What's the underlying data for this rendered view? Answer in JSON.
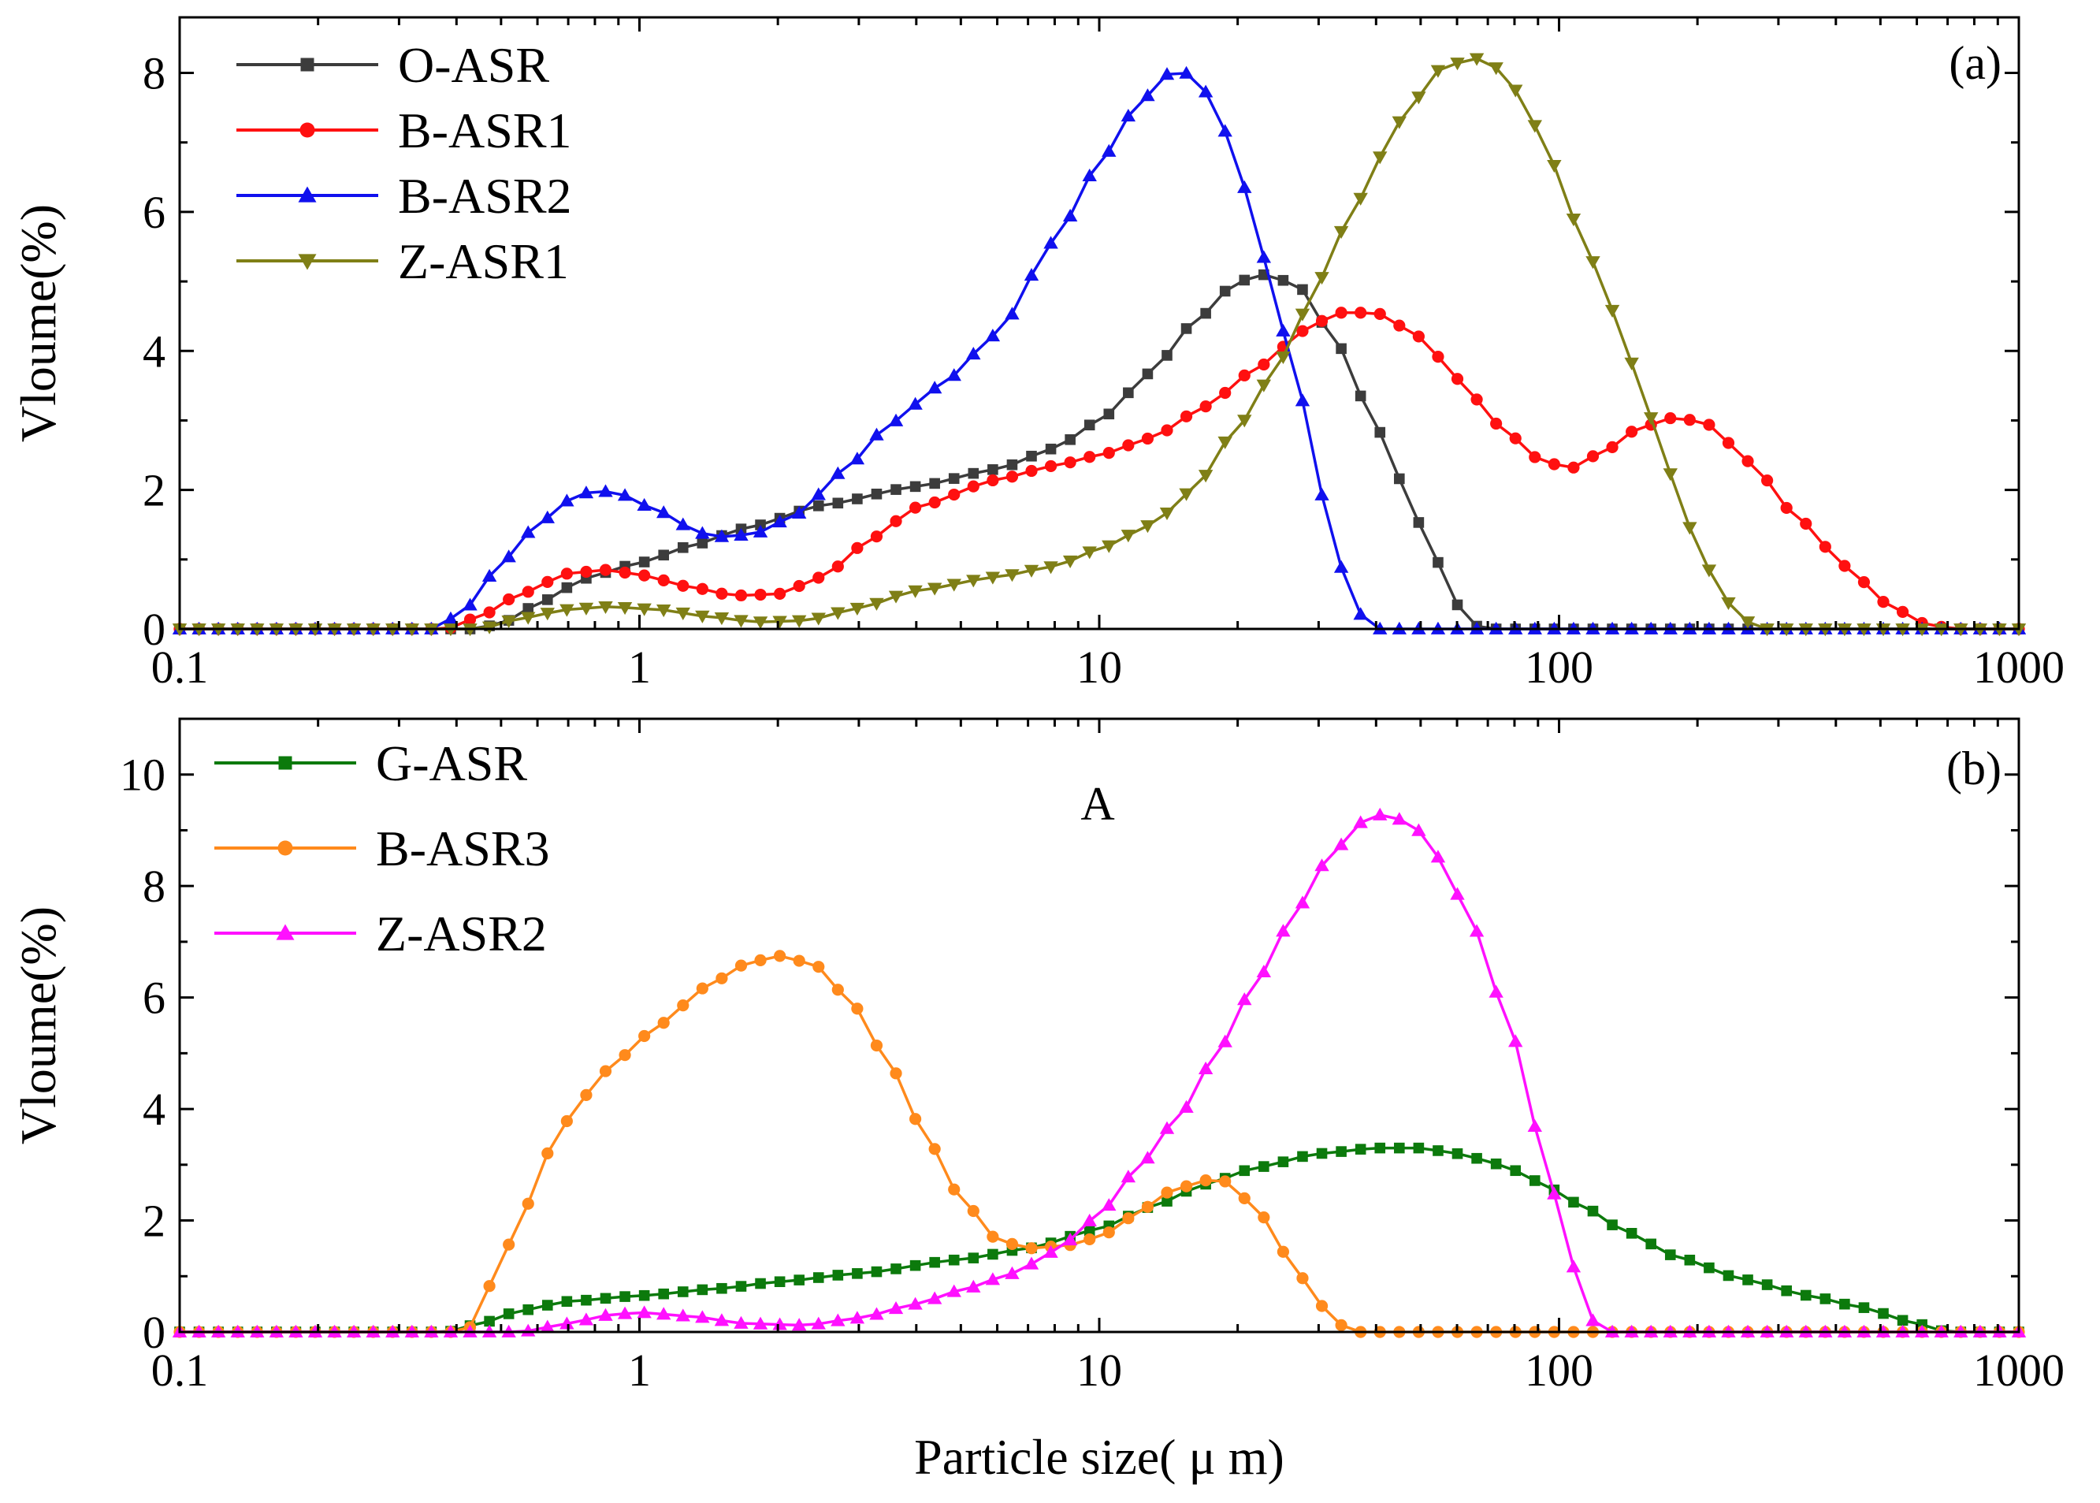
{
  "chart_data": [
    {
      "type": "line",
      "panel_label": "(a)",
      "xscale": "log",
      "xlim": [
        0.1,
        1000
      ],
      "ylim": [
        0,
        8.8
      ],
      "xticks": [
        0.1,
        1,
        10,
        100,
        1000
      ],
      "xtick_labels": [
        "0.1",
        "1",
        "10",
        "100",
        "1000"
      ],
      "yticks": [
        0,
        2,
        4,
        6,
        8
      ],
      "ytick_labels": [
        "0",
        "2",
        "4",
        "6",
        "8"
      ],
      "ylabel": "Vloume(%)",
      "xlabel": "",
      "legend_position": "top-left",
      "series": [
        {
          "name": "O-ASR",
          "color": "#3c3c3c",
          "marker": "square",
          "anchors": [
            [
              0.1,
              0
            ],
            [
              0.44,
              0
            ],
            [
              0.5,
              0.08
            ],
            [
              0.6,
              0.35
            ],
            [
              0.7,
              0.6
            ],
            [
              0.8,
              0.78
            ],
            [
              1,
              0.95
            ],
            [
              1.3,
              1.2
            ],
            [
              1.7,
              1.45
            ],
            [
              2.5,
              1.78
            ],
            [
              4,
              2.05
            ],
            [
              6,
              2.3
            ],
            [
              8,
              2.6
            ],
            [
              10,
              3.0
            ],
            [
              13,
              3.7
            ],
            [
              16,
              4.4
            ],
            [
              20,
              5.0
            ],
            [
              23,
              5.1
            ],
            [
              27,
              4.95
            ],
            [
              33,
              4.1
            ],
            [
              40,
              2.9
            ],
            [
              50,
              1.5
            ],
            [
              60,
              0.35
            ],
            [
              65,
              0.05
            ],
            [
              70,
              0
            ],
            [
              1000,
              0
            ]
          ]
        },
        {
          "name": "B-ASR1",
          "color": "#ff1010",
          "marker": "circle",
          "anchors": [
            [
              0.1,
              0
            ],
            [
              0.38,
              0
            ],
            [
              0.45,
              0.18
            ],
            [
              0.55,
              0.5
            ],
            [
              0.7,
              0.8
            ],
            [
              0.85,
              0.85
            ],
            [
              1,
              0.78
            ],
            [
              1.3,
              0.6
            ],
            [
              1.6,
              0.48
            ],
            [
              2,
              0.5
            ],
            [
              2.5,
              0.75
            ],
            [
              3.2,
              1.3
            ],
            [
              4,
              1.75
            ],
            [
              6,
              2.15
            ],
            [
              8,
              2.35
            ],
            [
              10,
              2.5
            ],
            [
              13,
              2.75
            ],
            [
              17,
              3.2
            ],
            [
              22,
              3.75
            ],
            [
              28,
              4.3
            ],
            [
              33,
              4.55
            ],
            [
              40,
              4.55
            ],
            [
              50,
              4.2
            ],
            [
              60,
              3.6
            ],
            [
              75,
              2.9
            ],
            [
              90,
              2.45
            ],
            [
              105,
              2.3
            ],
            [
              125,
              2.55
            ],
            [
              150,
              2.9
            ],
            [
              180,
              3.05
            ],
            [
              210,
              2.95
            ],
            [
              260,
              2.4
            ],
            [
              330,
              1.6
            ],
            [
              420,
              0.9
            ],
            [
              520,
              0.35
            ],
            [
              620,
              0.08
            ],
            [
              720,
              0
            ],
            [
              1000,
              0
            ]
          ]
        },
        {
          "name": "B-ASR2",
          "color": "#1010ee",
          "marker": "triangle-up",
          "anchors": [
            [
              0.1,
              0
            ],
            [
              0.36,
              0
            ],
            [
              0.42,
              0.3
            ],
            [
              0.5,
              0.95
            ],
            [
              0.6,
              1.5
            ],
            [
              0.7,
              1.85
            ],
            [
              0.8,
              2.0
            ],
            [
              0.9,
              1.95
            ],
            [
              1.1,
              1.7
            ],
            [
              1.35,
              1.38
            ],
            [
              1.55,
              1.32
            ],
            [
              1.8,
              1.38
            ],
            [
              2.2,
              1.65
            ],
            [
              2.8,
              2.3
            ],
            [
              3.5,
              2.95
            ],
            [
              4.5,
              3.5
            ],
            [
              6,
              4.25
            ],
            [
              8,
              5.6
            ],
            [
              10,
              6.7
            ],
            [
              12,
              7.5
            ],
            [
              14,
              7.98
            ],
            [
              16,
              8.0
            ],
            [
              18,
              7.5
            ],
            [
              20,
              6.6
            ],
            [
              23,
              5.3
            ],
            [
              27,
              3.5
            ],
            [
              31,
              1.8
            ],
            [
              35,
              0.5
            ],
            [
              38,
              0.1
            ],
            [
              40,
              0
            ],
            [
              1000,
              0
            ]
          ]
        },
        {
          "name": "Z-ASR1",
          "color": "#7f7f16",
          "marker": "triangle-down",
          "anchors": [
            [
              0.1,
              0
            ],
            [
              0.45,
              0
            ],
            [
              0.55,
              0.15
            ],
            [
              0.7,
              0.28
            ],
            [
              0.85,
              0.32
            ],
            [
              1.1,
              0.28
            ],
            [
              1.4,
              0.18
            ],
            [
              1.8,
              0.1
            ],
            [
              2.3,
              0.12
            ],
            [
              3,
              0.3
            ],
            [
              4,
              0.55
            ],
            [
              6,
              0.75
            ],
            [
              8,
              0.9
            ],
            [
              10,
              1.15
            ],
            [
              13,
              1.5
            ],
            [
              16,
              2.0
            ],
            [
              20,
              2.9
            ],
            [
              25,
              3.9
            ],
            [
              30,
              5.0
            ],
            [
              36,
              6.1
            ],
            [
              45,
              7.3
            ],
            [
              55,
              8.05
            ],
            [
              65,
              8.22
            ],
            [
              75,
              8.05
            ],
            [
              90,
              7.2
            ],
            [
              110,
              5.8
            ],
            [
              130,
              4.6
            ],
            [
              160,
              3.0
            ],
            [
              190,
              1.5
            ],
            [
              230,
              0.4
            ],
            [
              270,
              0
            ],
            [
              1000,
              0
            ]
          ]
        }
      ]
    },
    {
      "type": "line",
      "panel_label": "(b)",
      "annotation": "A",
      "xscale": "log",
      "xlim": [
        0.1,
        1000
      ],
      "ylim": [
        0,
        11
      ],
      "xticks": [
        0.1,
        1,
        10,
        100,
        1000
      ],
      "xtick_labels": [
        "0.1",
        "1",
        "10",
        "100",
        "1000"
      ],
      "yticks": [
        0,
        2,
        4,
        6,
        8,
        10
      ],
      "ytick_labels": [
        "0",
        "2",
        "4",
        "6",
        "8",
        "10"
      ],
      "ylabel": "Vloume(%)",
      "xlabel": "Particle size( μ m)",
      "legend_position": "top-left",
      "series": [
        {
          "name": "G-ASR",
          "color": "#0c7a0c",
          "marker": "square",
          "anchors": [
            [
              0.1,
              0
            ],
            [
              0.38,
              0
            ],
            [
              0.45,
              0.15
            ],
            [
              0.55,
              0.38
            ],
            [
              0.7,
              0.55
            ],
            [
              1,
              0.65
            ],
            [
              1.5,
              0.78
            ],
            [
              2,
              0.9
            ],
            [
              3,
              1.05
            ],
            [
              5,
              1.3
            ],
            [
              7,
              1.5
            ],
            [
              10,
              1.85
            ],
            [
              13,
              2.25
            ],
            [
              17,
              2.65
            ],
            [
              22,
              2.95
            ],
            [
              30,
              3.2
            ],
            [
              40,
              3.3
            ],
            [
              50,
              3.3
            ],
            [
              60,
              3.2
            ],
            [
              75,
              3.0
            ],
            [
              90,
              2.7
            ],
            [
              110,
              2.3
            ],
            [
              140,
              1.8
            ],
            [
              180,
              1.35
            ],
            [
              250,
              0.95
            ],
            [
              350,
              0.65
            ],
            [
              450,
              0.45
            ],
            [
              600,
              0.15
            ],
            [
              700,
              0
            ],
            [
              1000,
              0
            ]
          ]
        },
        {
          "name": "B-ASR3",
          "color": "#ff8a1c",
          "marker": "circle",
          "anchors": [
            [
              0.1,
              0
            ],
            [
              0.42,
              0
            ],
            [
              0.48,
              0.9
            ],
            [
              0.55,
              2.0
            ],
            [
              0.63,
              3.2
            ],
            [
              0.75,
              4.2
            ],
            [
              0.9,
              4.9
            ],
            [
              1.1,
              5.5
            ],
            [
              1.4,
              6.2
            ],
            [
              1.7,
              6.6
            ],
            [
              2,
              6.75
            ],
            [
              2.4,
              6.6
            ],
            [
              2.9,
              5.9
            ],
            [
              3.5,
              4.8
            ],
            [
              4.2,
              3.5
            ],
            [
              5,
              2.4
            ],
            [
              6,
              1.65
            ],
            [
              7,
              1.5
            ],
            [
              8.5,
              1.55
            ],
            [
              10,
              1.7
            ],
            [
              12,
              2.1
            ],
            [
              14,
              2.5
            ],
            [
              17,
              2.72
            ],
            [
              19,
              2.7
            ],
            [
              22,
              2.2
            ],
            [
              26,
              1.3
            ],
            [
              30,
              0.5
            ],
            [
              34,
              0.1
            ],
            [
              37,
              0
            ],
            [
              1000,
              0
            ]
          ]
        },
        {
          "name": "Z-ASR2",
          "color": "#ff10ff",
          "marker": "triangle-up",
          "anchors": [
            [
              0.1,
              0
            ],
            [
              0.55,
              0
            ],
            [
              0.7,
              0.15
            ],
            [
              0.85,
              0.3
            ],
            [
              1,
              0.35
            ],
            [
              1.3,
              0.28
            ],
            [
              1.7,
              0.15
            ],
            [
              2.3,
              0.12
            ],
            [
              3,
              0.25
            ],
            [
              4,
              0.5
            ],
            [
              5,
              0.75
            ],
            [
              6.5,
              1.05
            ],
            [
              8,
              1.45
            ],
            [
              10,
              2.1
            ],
            [
              12,
              2.9
            ],
            [
              15,
              3.9
            ],
            [
              18,
              5.0
            ],
            [
              22,
              6.3
            ],
            [
              27,
              7.6
            ],
            [
              32,
              8.6
            ],
            [
              38,
              9.2
            ],
            [
              42,
              9.3
            ],
            [
              48,
              9.1
            ],
            [
              55,
              8.5
            ],
            [
              65,
              7.3
            ],
            [
              78,
              5.5
            ],
            [
              92,
              3.3
            ],
            [
              105,
              1.4
            ],
            [
              115,
              0.3
            ],
            [
              125,
              0
            ],
            [
              1000,
              0
            ]
          ]
        }
      ]
    }
  ]
}
